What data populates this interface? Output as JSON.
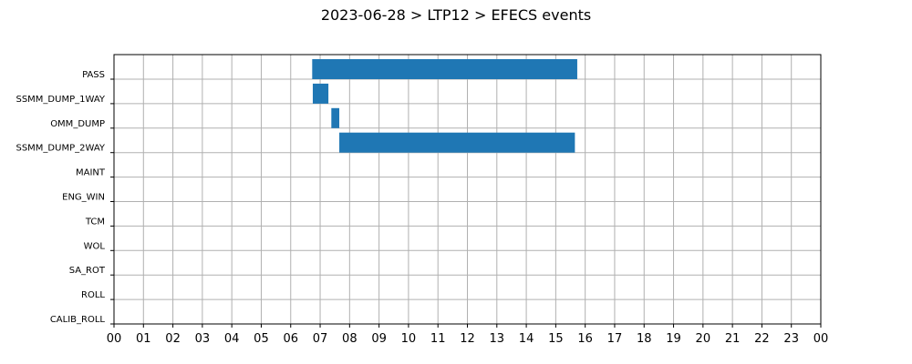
{
  "chart_data": {
    "type": "bar",
    "orientation": "horizontal-timeline",
    "title": "2023-06-28 > LTP12 > EFECS events",
    "xlabel": "",
    "ylabel": "",
    "xlim": [
      0,
      24
    ],
    "grid": true,
    "x_ticks": [
      "00",
      "01",
      "02",
      "03",
      "04",
      "05",
      "06",
      "07",
      "08",
      "09",
      "10",
      "11",
      "12",
      "13",
      "14",
      "15",
      "16",
      "17",
      "18",
      "19",
      "20",
      "21",
      "22",
      "23",
      "00"
    ],
    "categories": [
      "PASS",
      "SSMM_DUMP_1WAY",
      "OMM_DUMP",
      "SSMM_DUMP_2WAY",
      "MAINT",
      "ENG_WIN",
      "TCM",
      "WOL",
      "SA_ROT",
      "ROLL",
      "CALIB_ROLL"
    ],
    "bar_color": "#1f77b4",
    "events": [
      {
        "category": "PASS",
        "start": 6.73,
        "end": 15.73
      },
      {
        "category": "SSMM_DUMP_1WAY",
        "start": 6.75,
        "end": 7.28
      },
      {
        "category": "OMM_DUMP",
        "start": 7.38,
        "end": 7.65
      },
      {
        "category": "SSMM_DUMP_2WAY",
        "start": 7.65,
        "end": 15.65
      }
    ]
  }
}
